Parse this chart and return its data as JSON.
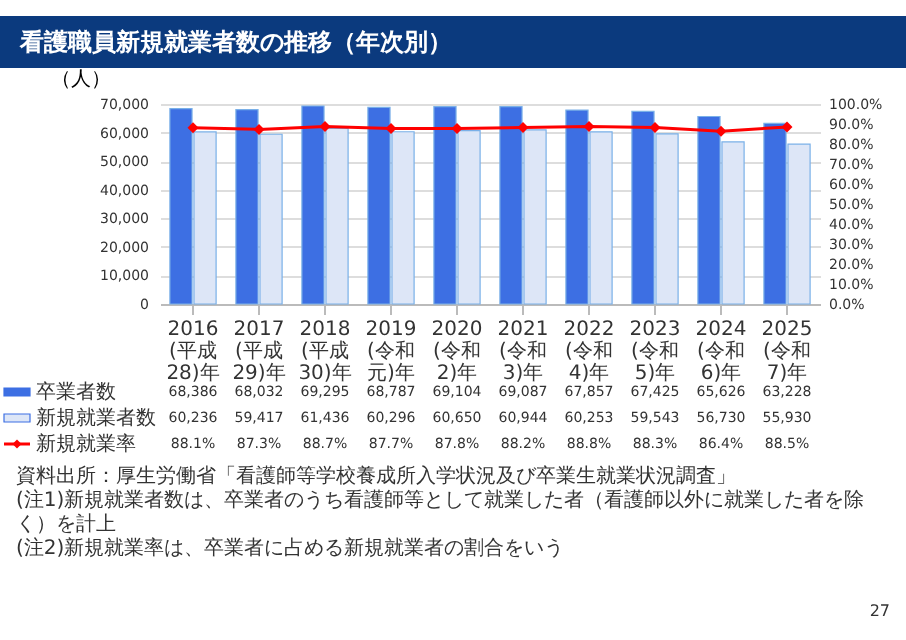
{
  "chart_data": {
    "type": "bar",
    "title": "看護職員新規就業者数の推移（年次別）",
    "ylabel": "（人）",
    "categories": [
      "2016\n(平成28)年",
      "2017\n(平成29)年",
      "2018\n(平成30)年",
      "2019\n(令和元)年",
      "2020\n(令和2)年",
      "2021\n(令和3)年",
      "2022\n(令和4)年",
      "2023\n(令和5)年",
      "2024\n(令和6)年",
      "2025\n(令和7)年"
    ],
    "series": [
      {
        "name": "卒業者数",
        "color": "#3d6fe3",
        "values": [
          68386,
          68032,
          69295,
          68787,
          69104,
          69087,
          67857,
          67425,
          65626,
          63228
        ],
        "value_labels": [
          "68,386",
          "68,032",
          "69,295",
          "68,787",
          "69,104",
          "69,087",
          "67,857",
          "67,425",
          "65,626",
          "63,228"
        ]
      },
      {
        "name": "新規就業者数",
        "color": "#dde6f7",
        "values": [
          60236,
          59417,
          61436,
          60296,
          60650,
          60944,
          60253,
          59543,
          56730,
          55930
        ],
        "value_labels": [
          "60,236",
          "59,417",
          "61,436",
          "60,296",
          "60,650",
          "60,944",
          "60,253",
          "59,543",
          "56,730",
          "55,930"
        ]
      },
      {
        "name": "新規就業率",
        "type": "line",
        "axis": "y2",
        "color": "#ff0000",
        "values": [
          88.1,
          87.3,
          88.7,
          87.7,
          87.8,
          88.2,
          88.8,
          88.3,
          86.4,
          88.5
        ],
        "value_labels": [
          "88.1%",
          "87.3%",
          "88.7%",
          "87.7%",
          "87.8%",
          "88.2%",
          "88.8%",
          "88.3%",
          "86.4%",
          "88.5%"
        ]
      }
    ],
    "ylim": [
      0,
      70000
    ],
    "yticks": [
      0,
      {
        "value": 10000,
        "label": "10,000"
      },
      {
        "value": 20000,
        "label": "20,000"
      },
      {
        "value": 30000,
        "label": "30,000"
      },
      {
        "value": 40000,
        "label": "40,000"
      },
      {
        "value": 50000,
        "label": "50,000"
      },
      {
        "value": 60000,
        "label": "60,000"
      },
      {
        "value": 70000,
        "label": "70,000"
      }
    ],
    "y2lim": [
      0,
      100
    ],
    "y2ticks": [
      {
        "value": 0,
        "label": "0.0%"
      },
      {
        "value": 10,
        "label": "10.0%"
      },
      {
        "value": 20,
        "label": "20.0%"
      },
      {
        "value": 30,
        "label": "30.0%"
      },
      {
        "value": 40,
        "label": "40.0%"
      },
      {
        "value": 50,
        "label": "50.0%"
      },
      {
        "value": 60,
        "label": "60.0%"
      },
      {
        "value": 70,
        "label": "70.0%"
      },
      {
        "value": 80,
        "label": "80.0%"
      },
      {
        "value": 90,
        "label": "90.0%"
      },
      {
        "value": 100,
        "label": "100.0%"
      }
    ],
    "grid": "y",
    "legend": "bottom",
    "marker": "diamond",
    "line_style": "solid",
    "annotations": [
      "資料出所：厚生労働省「看護師等学校養成所入学状況及び卒業生就業状況調査」",
      "(注1)新規就業者数は、卒業者のうち看護師等として就業した者（看護師以外に就業した者を除く）を計上",
      "(注2)新規就業率は、卒業者に占める新規就業者の割合をいう",
      "27"
    ]
  }
}
